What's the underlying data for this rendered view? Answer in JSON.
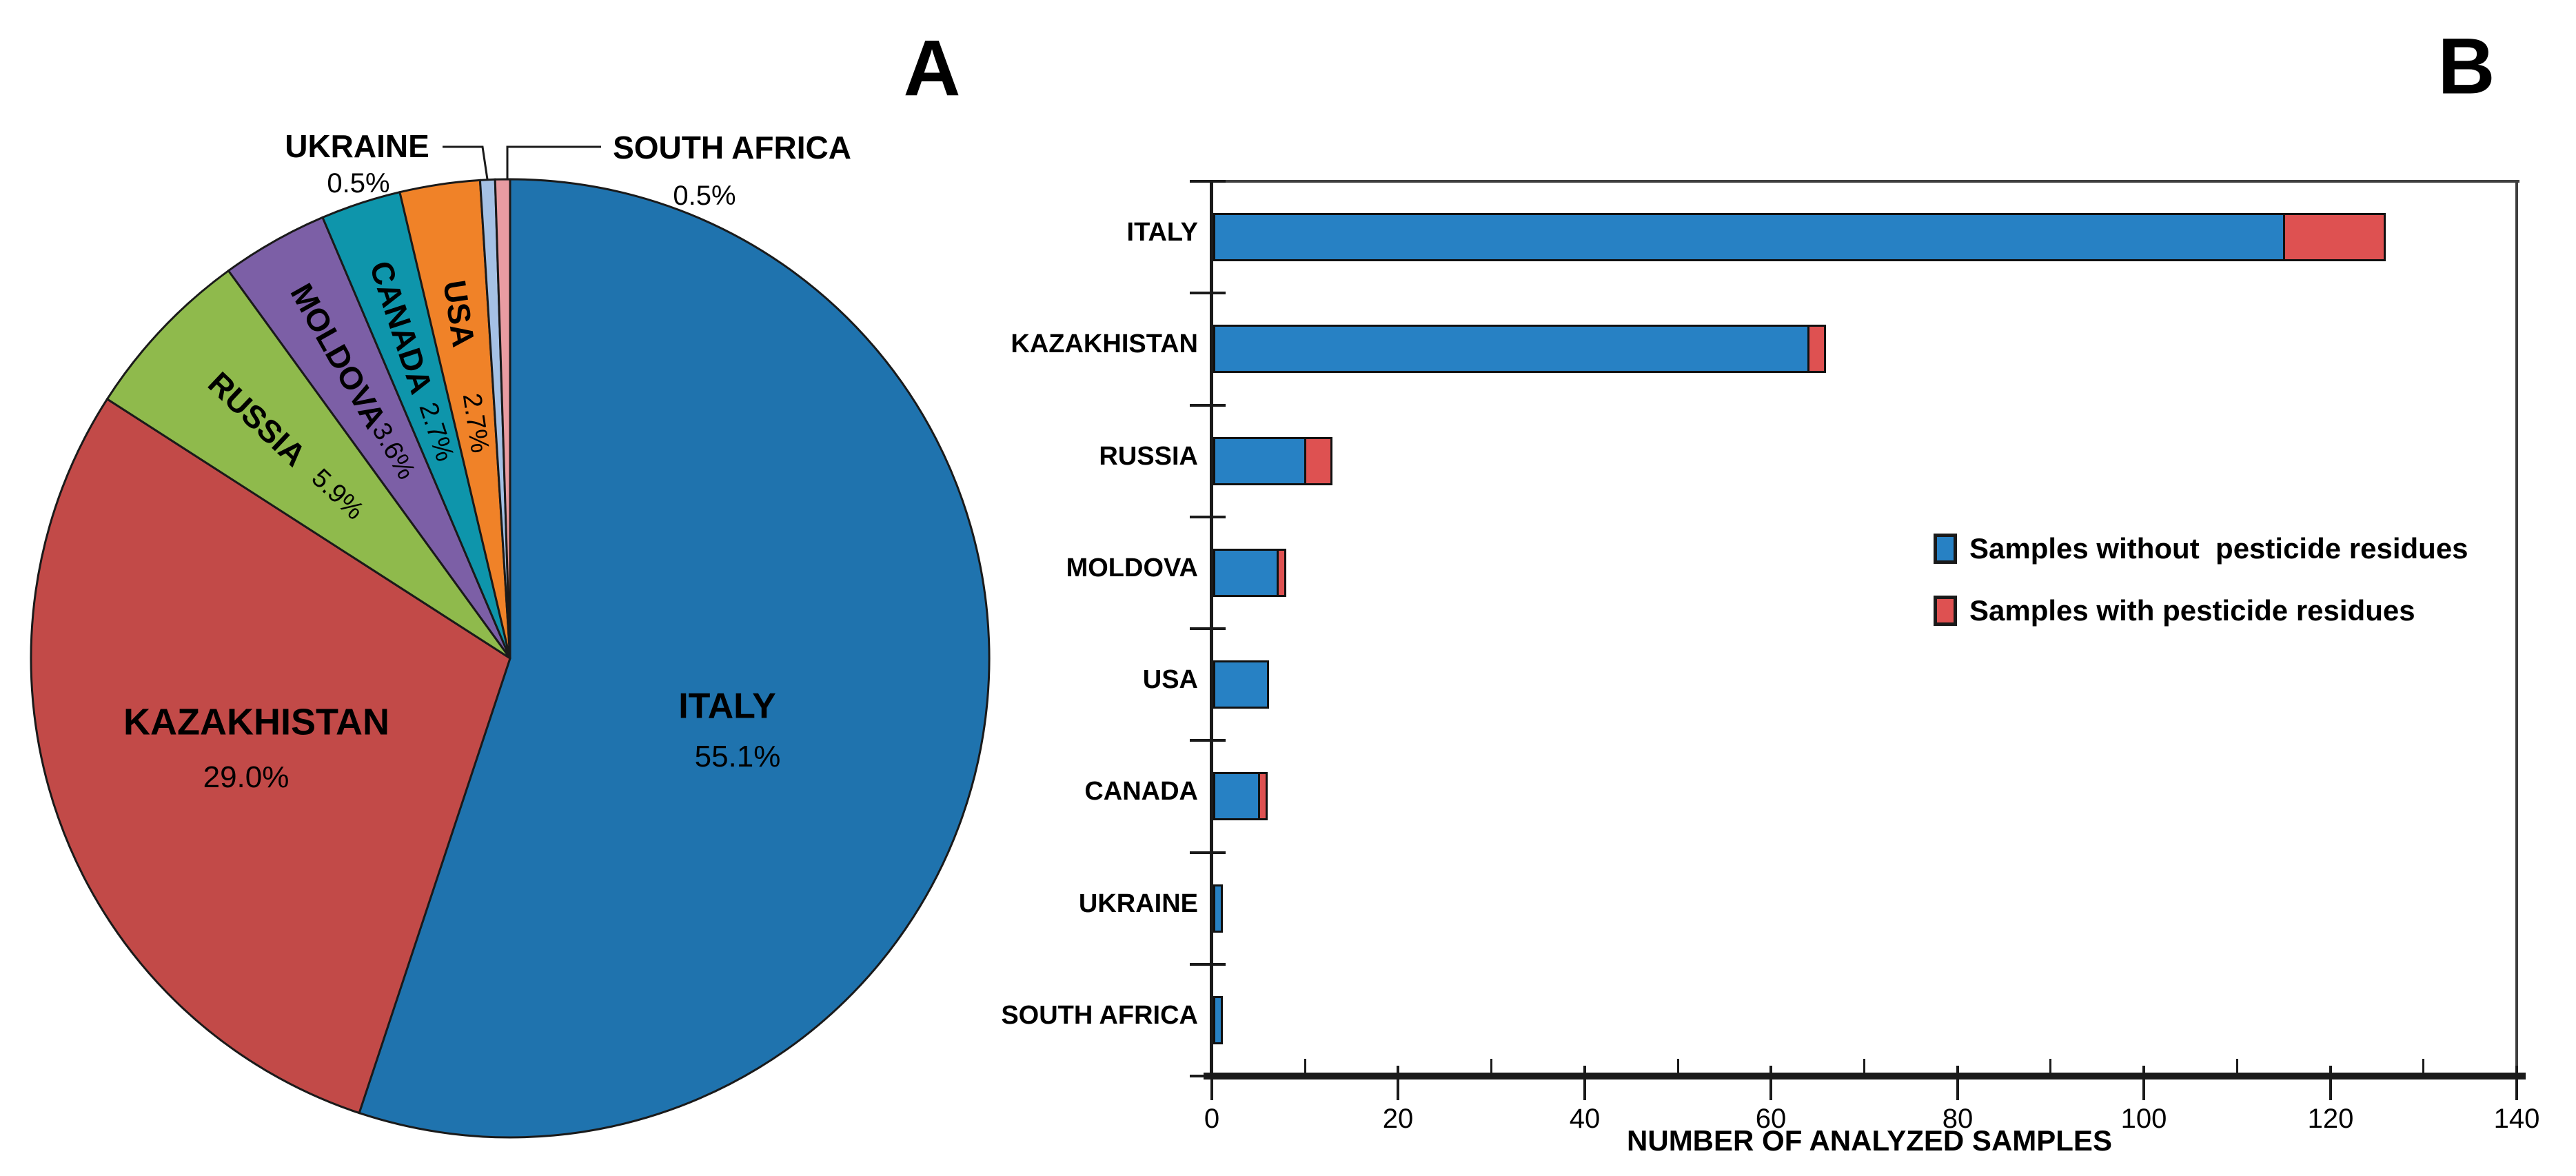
{
  "titles": {
    "panel_a": "A",
    "panel_b": "B"
  },
  "chart_data": [
    {
      "type": "pie",
      "panel": "A",
      "direction": "clockwise",
      "start_angle_deg": 0,
      "slices": [
        {
          "label": "ITALY",
          "pct_label": "55.1%",
          "value": 55.1,
          "color": "#1F73AE",
          "label_style": "horizontal"
        },
        {
          "label": "KAZAKHISTAN",
          "pct_label": "29.0%",
          "value": 29.0,
          "color": "#C24A48",
          "label_style": "horizontal"
        },
        {
          "label": "RUSSIA",
          "pct_label": "5.9%",
          "value": 5.9,
          "color": "#8FBA4C",
          "label_style": "radial"
        },
        {
          "label": "MOLDOVA",
          "pct_label": "3.6%",
          "value": 3.6,
          "color": "#7C5FA6",
          "label_style": "radial"
        },
        {
          "label": "CANADA",
          "pct_label": "2.7%",
          "value": 2.7,
          "color": "#0E95AB",
          "label_style": "radial"
        },
        {
          "label": "USA",
          "pct_label": "2.7%",
          "value": 2.7,
          "color": "#F08228",
          "label_style": "radial"
        },
        {
          "label": "UKRAINE",
          "pct_label": "0.5%",
          "value": 0.5,
          "color": "#A5C1E5",
          "label_style": "callout"
        },
        {
          "label": "SOUTH AFRICA",
          "pct_label": "0.5%",
          "value": 0.5,
          "color": "#E99CA2",
          "label_style": "callout"
        }
      ]
    },
    {
      "type": "bar",
      "panel": "B",
      "orientation": "horizontal",
      "categories": [
        "ITALY",
        "KAZAKHISTAN",
        "RUSSIA",
        "MOLDOVA",
        "USA",
        "CANADA",
        "UKRAINE",
        "SOUTH AFRICA"
      ],
      "series": [
        {
          "name": "Samples without  pesticide residues",
          "color": "#2781C4",
          "values": [
            115,
            64,
            10,
            7,
            6,
            5,
            1,
            1
          ]
        },
        {
          "name": "Samples with pesticide residues",
          "color": "#DE5151",
          "values": [
            11,
            2,
            3,
            1,
            0,
            1,
            0,
            0
          ]
        }
      ],
      "totals": [
        126,
        66,
        13,
        8,
        6,
        6,
        1,
        1
      ],
      "xlabel": "NUMBER OF ANALYZED SAMPLES",
      "xlim": [
        0,
        140
      ],
      "x_major_tick": 20,
      "x_minor_tick": 10,
      "x_tick_labels": [
        "0",
        "20",
        "40",
        "60",
        "80",
        "100",
        "120",
        "140"
      ],
      "grid": false,
      "legend_position": "middle-right"
    }
  ]
}
